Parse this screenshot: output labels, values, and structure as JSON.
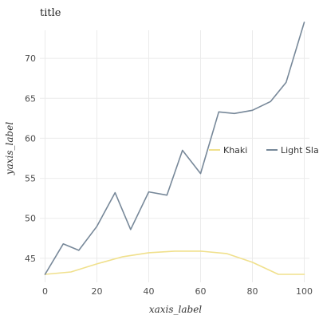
{
  "chart_data": {
    "type": "line",
    "title": "title",
    "xlabel": "xaxis_label",
    "ylabel": "yaxis_label",
    "xlim": [
      -2,
      102
    ],
    "ylim": [
      42,
      73.5
    ],
    "xticks": [
      0,
      20,
      40,
      60,
      80,
      100
    ],
    "yticks": [
      45,
      50,
      55,
      60,
      65,
      70
    ],
    "grid": true,
    "legend_position": "right",
    "series": [
      {
        "name": "Khaki",
        "color": "#f0e08c",
        "x": [
          0,
          10,
          20,
          30,
          40,
          50,
          60,
          70,
          80,
          90,
          100
        ],
        "y": [
          43.0,
          43.3,
          44.3,
          45.2,
          45.7,
          45.9,
          45.9,
          45.6,
          44.5,
          43.0,
          43.0
        ]
      },
      {
        "name": "Light Slate",
        "color": "#778899",
        "x": [
          0,
          7,
          13,
          20,
          27,
          33,
          40,
          47,
          53,
          60,
          67,
          73,
          80,
          87,
          93,
          100
        ],
        "y": [
          43.0,
          46.8,
          46.0,
          49.0,
          53.2,
          48.6,
          53.3,
          52.9,
          58.5,
          55.6,
          63.3,
          63.1,
          63.5,
          64.6,
          67.0,
          74.5
        ]
      }
    ]
  }
}
